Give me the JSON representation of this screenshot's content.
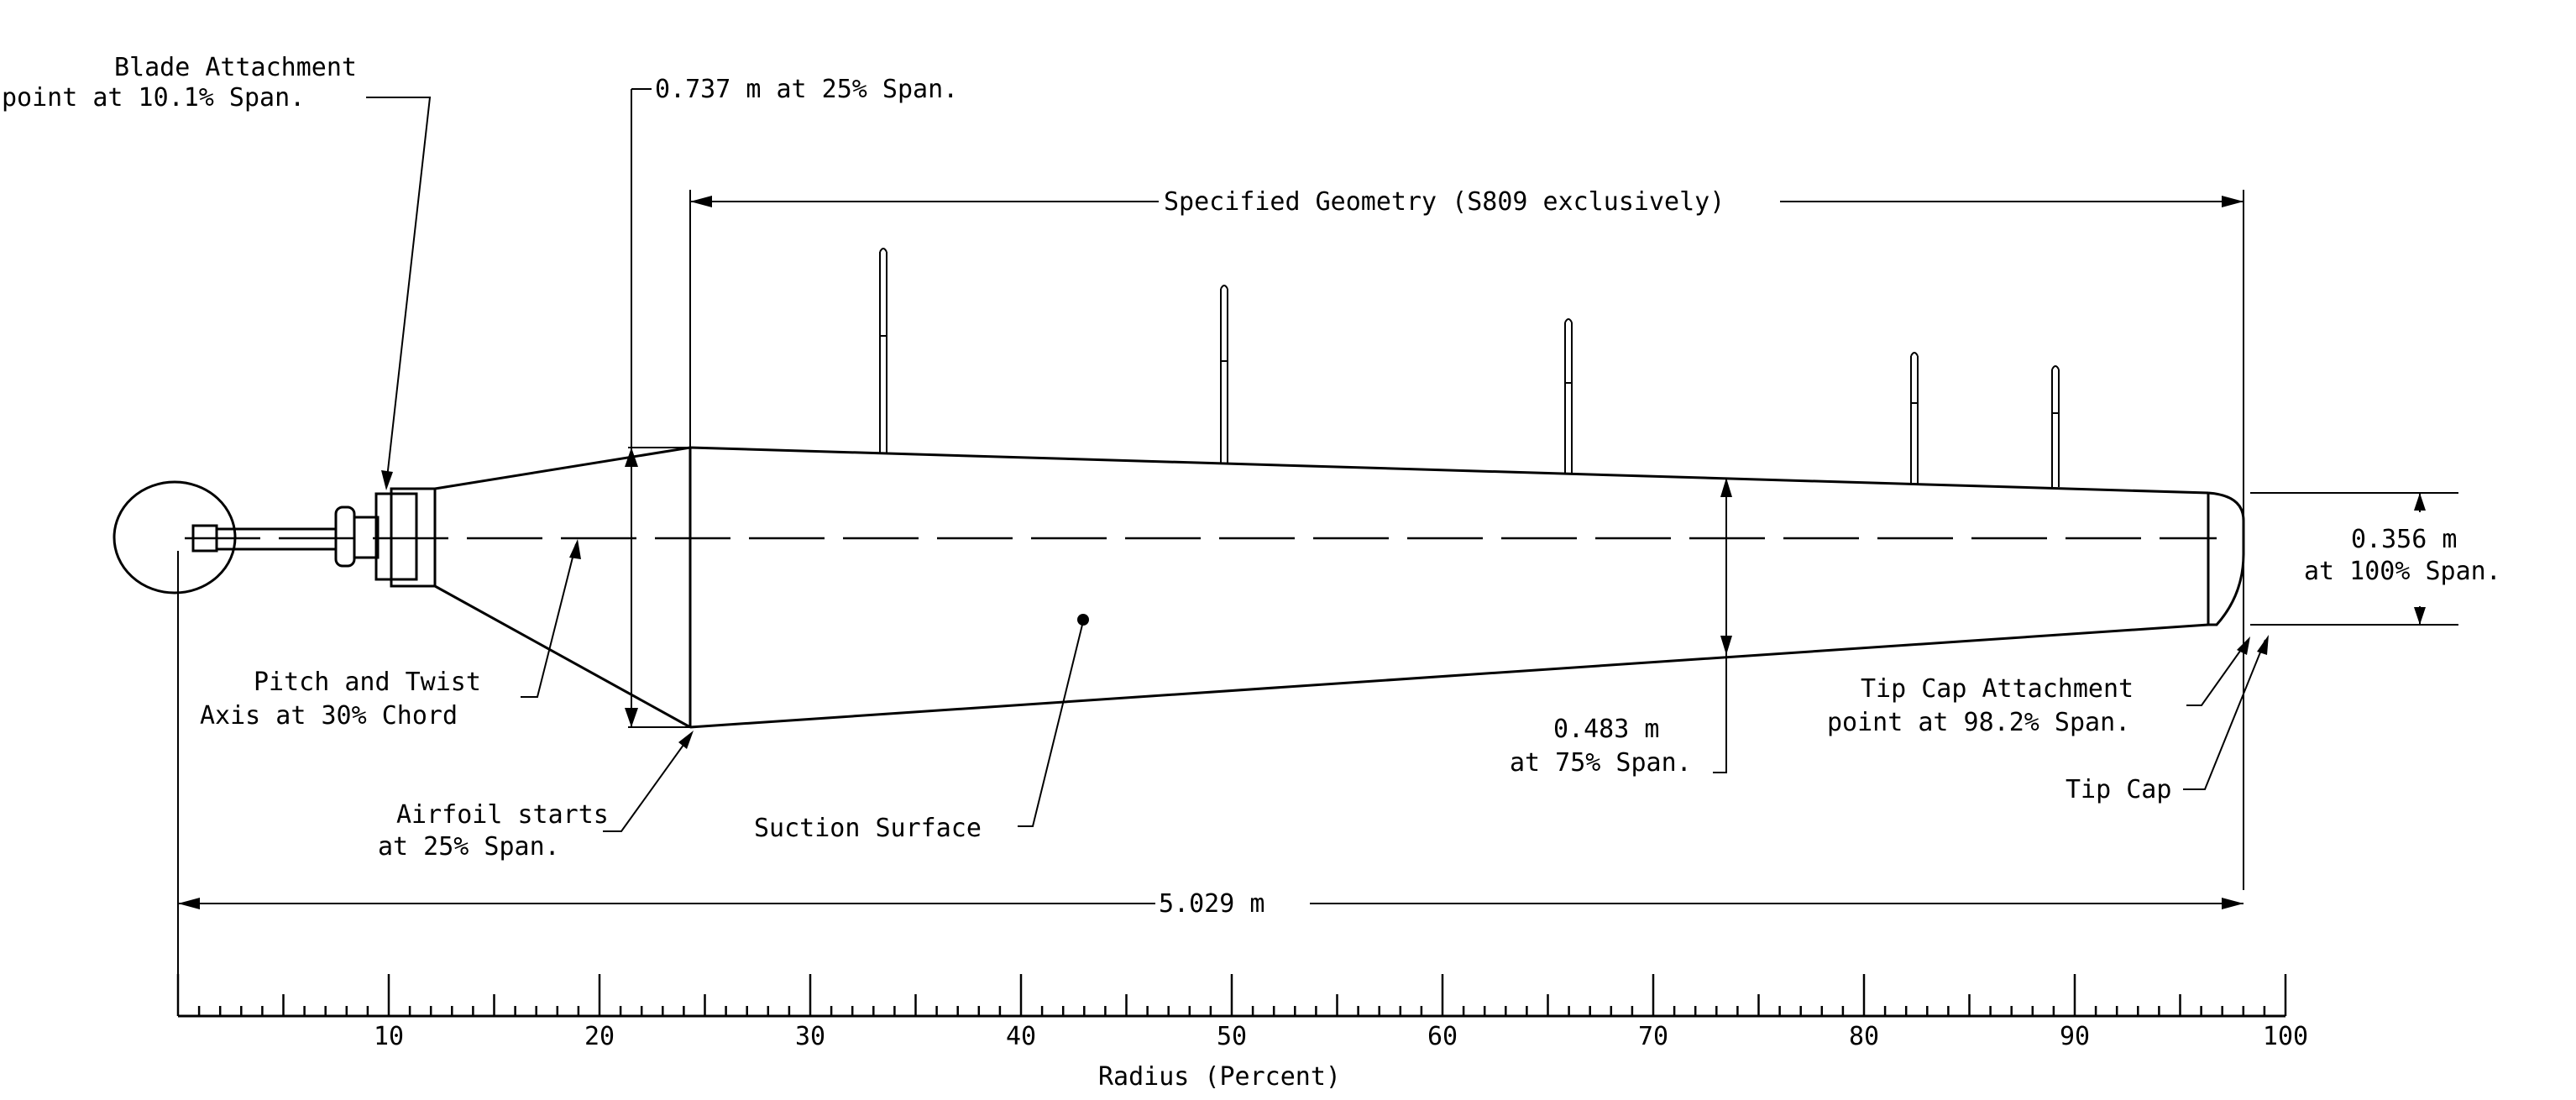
{
  "labels": {
    "blade_attachment_1": "Blade Attachment",
    "blade_attachment_2": "point at 10.1% Span.",
    "root_chord": "0.737  m  at  25%  Span.",
    "specified_geometry": "Specified Geometry (S809 exclusively)",
    "tip_chord_1": "0.356  m",
    "tip_chord_2": "at 100% Span.",
    "pitch_axis_1": "Pitch  and  Twist",
    "pitch_axis_2": "Axis  at 30% Chord",
    "airfoil_start_1": "Airfoil  starts",
    "airfoil_start_2": "at 25% Span.",
    "suction_surface": "Suction Surface",
    "mid_chord_1": "0.483  m",
    "mid_chord_2": "at 75% Span.",
    "tipcap_attach_1": "Tip Cap Attachment",
    "tipcap_attach_2": "point at 98.2% Span.",
    "tip_cap": "Tip Cap",
    "total_length": "5.029  m",
    "axis_label": "Radius  (Percent)"
  },
  "axis": {
    "min": 0,
    "max": 100,
    "major_step": 10,
    "minor_step": 1,
    "tick_labels": [
      "10",
      "20",
      "30",
      "40",
      "50",
      "60",
      "70",
      "80",
      "90",
      "100"
    ]
  },
  "colors": {
    "ink": "#000000",
    "paper": "#ffffff"
  }
}
